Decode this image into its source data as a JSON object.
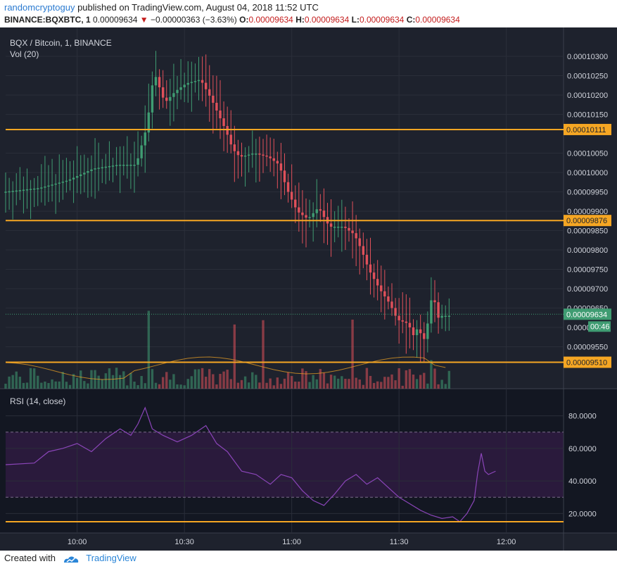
{
  "header": {
    "author": "randomcryptoguy",
    "published": "published on TradingView.com, August 04, 2018 11:52 UTC",
    "symbol": "BINANCE:BQXBTC, 1",
    "last": "0.00009634",
    "change": "−0.00000363 (−3.63%)",
    "o_label": "O:",
    "o": "0.00009634",
    "h_label": "H:",
    "h": "0.00009634",
    "l_label": "L:",
    "l": "0.00009634",
    "c_label": "C:",
    "c": "0.00009634"
  },
  "footer": {
    "created": "Created with",
    "brand": "TradingView"
  },
  "colors": {
    "up": "#3f9c72",
    "down": "#e0505a",
    "level": "#f5a623",
    "rsi": "#8a45b8",
    "bg": "#1e222d"
  },
  "chart_data": [
    {
      "type": "candlestick",
      "title": "BQX / Bitcoin, 1, BINANCE",
      "volume_label": "Vol (20)",
      "ylim": [
        9.5e-05,
        0.0001032
      ],
      "y_ticks": [
        "0.00010300",
        "0.00010250",
        "0.00010200",
        "0.00010150",
        "0.00010050",
        "0.00010000",
        "0.00009950",
        "0.00009900",
        "0.00009850",
        "0.00009800",
        "0.00009750",
        "0.00009700",
        "0.00009650",
        "0.00009600",
        "0.00009550"
      ],
      "x_ticks": [
        "10:00",
        "10:30",
        "11:00",
        "11:30",
        "12:00"
      ],
      "x_tick_minutes": [
        600,
        630,
        660,
        690,
        720
      ],
      "horizontal_levels": [
        "0.00010111",
        "0.00009876",
        "0.00009510"
      ],
      "last_price": "0.00009634",
      "countdown": "00:46",
      "ohlc_path": [
        [
          580,
          9.95e-05
        ],
        [
          590,
          9.96e-05
        ],
        [
          598,
          9.98e-05
        ],
        [
          605,
          0.0001001
        ],
        [
          612,
          0.0001002
        ],
        [
          617,
          0.0001002
        ],
        [
          620,
          0.0001012
        ],
        [
          622,
          0.0001026
        ],
        [
          625,
          0.0001018
        ],
        [
          628,
          0.0001021
        ],
        [
          631,
          0.0001023
        ],
        [
          635,
          0.0001024
        ],
        [
          638,
          0.0001019
        ],
        [
          640,
          0.0001015
        ],
        [
          642,
          0.0001011
        ],
        [
          644,
          0.0001006
        ],
        [
          646,
          0.0001004
        ],
        [
          650,
          0.0001005
        ],
        [
          654,
          0.0001004
        ],
        [
          657,
          0.0001002
        ],
        [
          659,
          9.96e-05
        ],
        [
          662,
          9.9e-05
        ],
        [
          665,
          9.88e-05
        ],
        [
          668,
          9.91e-05
        ],
        [
          671,
          9.86e-05
        ],
        [
          675,
          9.86e-05
        ],
        [
          678,
          9.84e-05
        ],
        [
          680,
          9.8e-05
        ],
        [
          682,
          9.75e-05
        ],
        [
          685,
          9.7e-05
        ],
        [
          688,
          9.66e-05
        ],
        [
          690,
          9.62e-05
        ],
        [
          693,
          9.61e-05
        ],
        [
          695,
          9.57e-05
        ],
        [
          696,
          9.62e-05
        ],
        [
          697,
          9.55e-05
        ],
        [
          699,
          9.63e-05
        ],
        [
          700,
          9.71e-05
        ],
        [
          701,
          9.62e-05
        ],
        [
          702,
          9.63e-05
        ],
        [
          704,
          9.63e-05
        ]
      ]
    },
    {
      "type": "line",
      "title": "RSI (14, close)",
      "ylim": [
        15,
        85
      ],
      "y_ticks": [
        "80.0000",
        "60.0000",
        "40.0000",
        "20.0000"
      ],
      "bands": [
        30,
        70
      ],
      "level": 15,
      "series": [
        {
          "values": [
            [
              580,
              50
            ],
            [
              588,
              51
            ],
            [
              592,
              58
            ],
            [
              596,
              60
            ],
            [
              600,
              63
            ],
            [
              604,
              58
            ],
            [
              608,
              66
            ],
            [
              612,
              72
            ],
            [
              615,
              68
            ],
            [
              617,
              75
            ],
            [
              619,
              85
            ],
            [
              621,
              72
            ],
            [
              624,
              68
            ],
            [
              628,
              64
            ],
            [
              632,
              68
            ],
            [
              636,
              74
            ],
            [
              639,
              63
            ],
            [
              642,
              58
            ],
            [
              646,
              46
            ],
            [
              650,
              44
            ],
            [
              654,
              38
            ],
            [
              657,
              44
            ],
            [
              660,
              42
            ],
            [
              663,
              34
            ],
            [
              666,
              28
            ],
            [
              669,
              25
            ],
            [
              672,
              32
            ],
            [
              675,
              40
            ],
            [
              678,
              44
            ],
            [
              681,
              38
            ],
            [
              684,
              42
            ],
            [
              687,
              36
            ],
            [
              690,
              30
            ],
            [
              693,
              26
            ],
            [
              696,
              22
            ],
            [
              699,
              19
            ],
            [
              702,
              17
            ],
            [
              705,
              18
            ],
            [
              707,
              15
            ],
            [
              709,
              20
            ],
            [
              711,
              28
            ],
            [
              712,
              45
            ],
            [
              713,
              57
            ],
            [
              714,
              46
            ],
            [
              715,
              44
            ],
            [
              717,
              46
            ]
          ]
        }
      ]
    }
  ]
}
